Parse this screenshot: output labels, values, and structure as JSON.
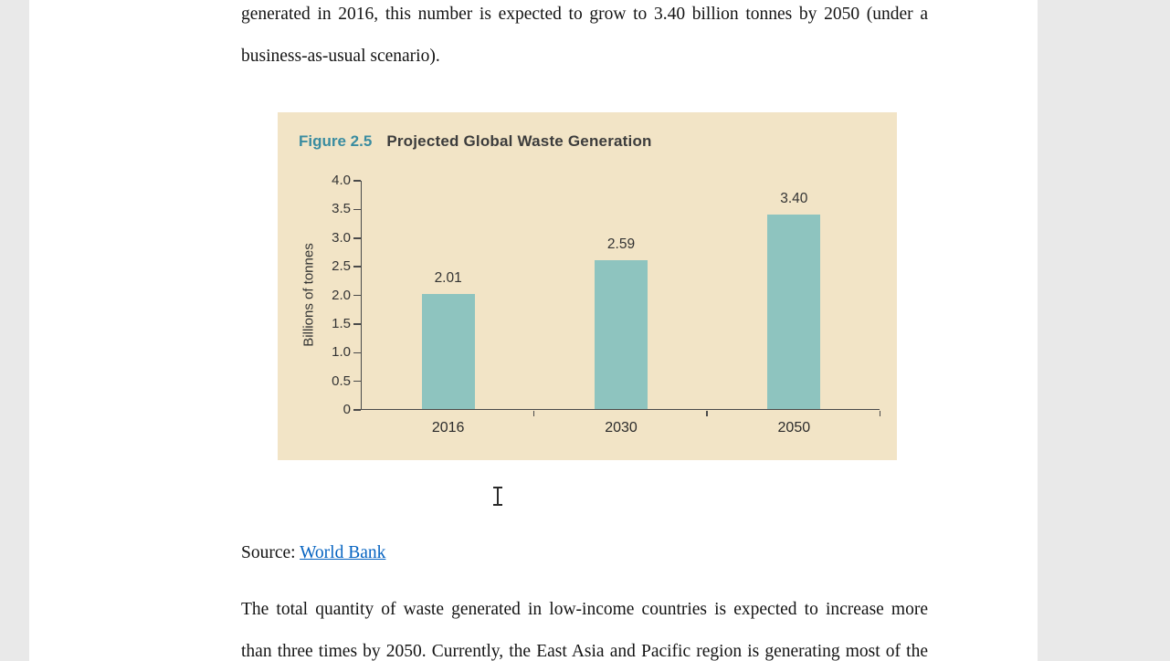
{
  "page": {
    "top_paragraph": {
      "lines": [
        "generated in 2016, this number is expected to grow to 3.40 billion tonnes by 2050 (under a",
        "business-as-usual scenario)."
      ]
    },
    "source": {
      "prefix": "Source: ",
      "link_text": "World Bank",
      "link_color": "#0563C1"
    },
    "bottom_paragraph": {
      "lines": [
        "The total quantity of waste generated in low-income countries is expected to increase more",
        "than three times by 2050. Currently, the East Asia and Pacific region is generating most of the"
      ]
    }
  },
  "figure": {
    "label": "Figure 2.5",
    "title": "Projected Global Waste Generation",
    "background": "#f2e4c6",
    "accent": "#3a8ca0"
  },
  "chart_data": {
    "type": "bar",
    "title": "Projected Global Waste Generation",
    "categories": [
      "2016",
      "2030",
      "2050"
    ],
    "values": [
      2.01,
      2.59,
      3.4
    ],
    "value_labels": [
      "2.01",
      "2.59",
      "3.40"
    ],
    "xlabel": "",
    "ylabel": "Billions of tonnes",
    "ylim": [
      0,
      4.0
    ],
    "yticks": [
      "0",
      "0.5",
      "1.0",
      "1.5",
      "2.0",
      "2.5",
      "3.0",
      "3.5",
      "4.0"
    ],
    "bar_color": "#8ec4bf",
    "axis_color": "#4a4a4a",
    "grid": false,
    "legend": false
  }
}
